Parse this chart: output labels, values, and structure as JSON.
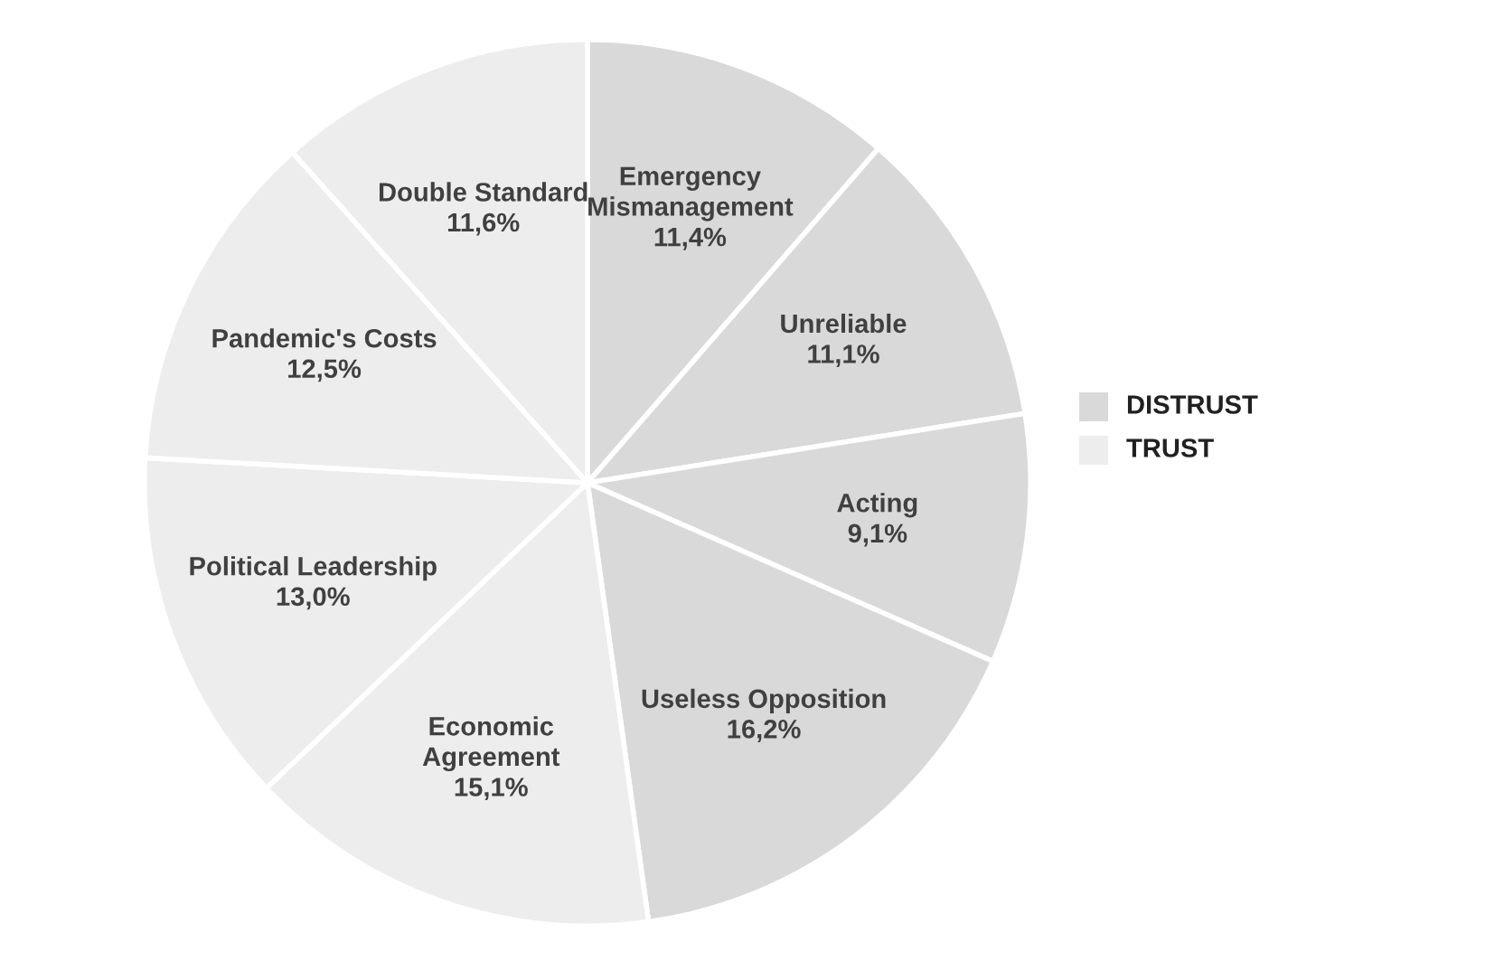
{
  "chart_data": {
    "type": "pie",
    "categories": [
      "Emergency Mismanagement",
      "Unreliable",
      "Acting",
      "Useless Opposition",
      "Economic Agreement",
      "Political Leadership",
      "Pandemic's Costs",
      "Double Standard"
    ],
    "values": [
      11.4,
      11.1,
      9.1,
      16.2,
      15.1,
      13.0,
      12.5,
      11.6
    ],
    "colors": [
      "#d9d9d9",
      "#d9d9d9",
      "#d9d9d9",
      "#d9d9d9",
      "#ededed",
      "#ededed",
      "#ededed",
      "#ededed"
    ],
    "value_labels": [
      "11,4%",
      "11,1%",
      "9,1%",
      "16,2%",
      "15,1%",
      "13,0%",
      "12,5%",
      "11,6%"
    ],
    "annotations": [
      "DISTRUST",
      "TRUST"
    ]
  }
}
